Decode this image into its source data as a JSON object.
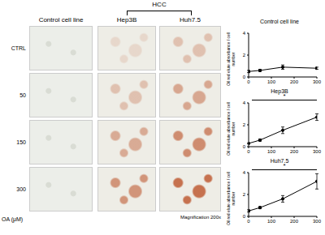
{
  "figure": {
    "group_label": "HCC",
    "columns": [
      "Control cell line",
      "Hep3B",
      "Huh7.5"
    ],
    "rows": [
      "CTRL",
      "50",
      "150",
      "300"
    ],
    "x_label": "OA (μM)",
    "magnification": "Magnification 200x"
  },
  "chart_data": [
    {
      "type": "line",
      "title": "Control cell line",
      "y_label": "Oil red elute absorbance / cell number",
      "x": [
        0,
        50,
        150,
        300
      ],
      "values": [
        0.5,
        0.6,
        0.9,
        0.8
      ],
      "errors": [
        0.1,
        0.1,
        0.2,
        0.1
      ],
      "color": "#000000",
      "marker": "circle",
      "xlim": [
        0,
        300
      ],
      "xticks": [
        0,
        100,
        200,
        300
      ],
      "ylim": [
        0,
        4
      ],
      "yticks": [
        0,
        2,
        4
      ],
      "grid": false
    },
    {
      "type": "line",
      "title": "Hep3B",
      "y_label": "Oil red elute absorbance / cell number",
      "x": [
        0,
        50,
        150,
        300
      ],
      "values": [
        0.3,
        0.6,
        1.5,
        2.7
      ],
      "errors": [
        0.05,
        0.1,
        0.3,
        0.3
      ],
      "color": "#000000",
      "marker": "circle",
      "xlim": [
        0,
        300
      ],
      "xticks": [
        0,
        100,
        200,
        300
      ],
      "ylim": [
        0,
        4
      ],
      "yticks": [
        0,
        2,
        4
      ],
      "grid": false,
      "significance": "*"
    },
    {
      "type": "line",
      "title": "Huh7.5",
      "y_label": "Oil red elute absorbance / cell number",
      "x": [
        0,
        50,
        150,
        300
      ],
      "values": [
        0.5,
        0.8,
        1.6,
        3.2
      ],
      "errors": [
        0.1,
        0.1,
        0.3,
        0.7
      ],
      "color": "#000000",
      "marker": "circle",
      "xlim": [
        0,
        300
      ],
      "xticks": [
        0,
        100,
        200,
        300
      ],
      "ylim": [
        0,
        4
      ],
      "yticks": [
        0,
        2,
        4
      ],
      "grid": false,
      "significance": "*"
    }
  ]
}
